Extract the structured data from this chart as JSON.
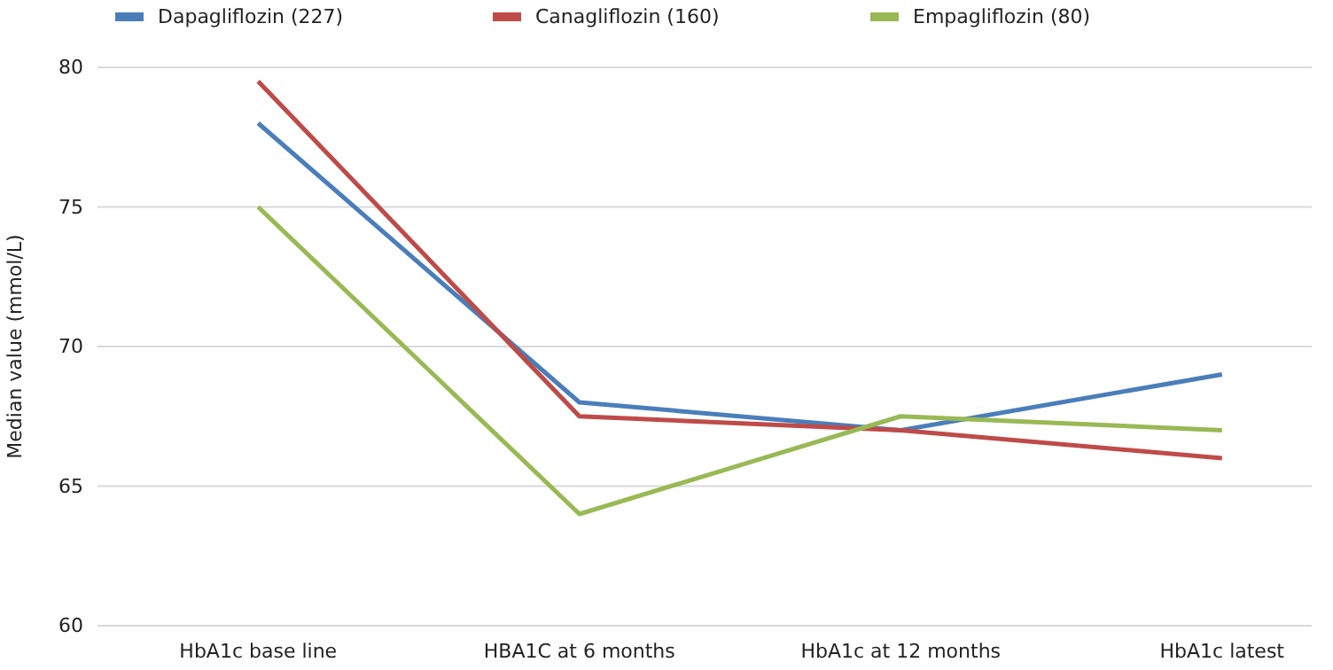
{
  "chart_data": {
    "type": "line",
    "ylabel": "Median value (mmol/L)",
    "categories": [
      "HbA1c base line",
      "HBA1C at 6 months",
      "HbA1c at 12 months",
      "HbA1c latest"
    ],
    "series": [
      {
        "name": "Dapagliflozin (227)",
        "color": "#4a7ebb",
        "values": [
          78,
          68,
          67,
          69
        ]
      },
      {
        "name": "Canagliflozin (160)",
        "color": "#be4b48",
        "values": [
          79.5,
          67.5,
          67,
          66
        ]
      },
      {
        "name": "Empagliflozin (80)",
        "color": "#98b954",
        "values": [
          75,
          64,
          67.5,
          67
        ]
      }
    ],
    "ylim": [
      60,
      80
    ],
    "yticks": [
      60,
      65,
      70,
      75,
      80
    ],
    "grid": "y",
    "legend": "top",
    "marker": "none",
    "line_style": "solid"
  }
}
